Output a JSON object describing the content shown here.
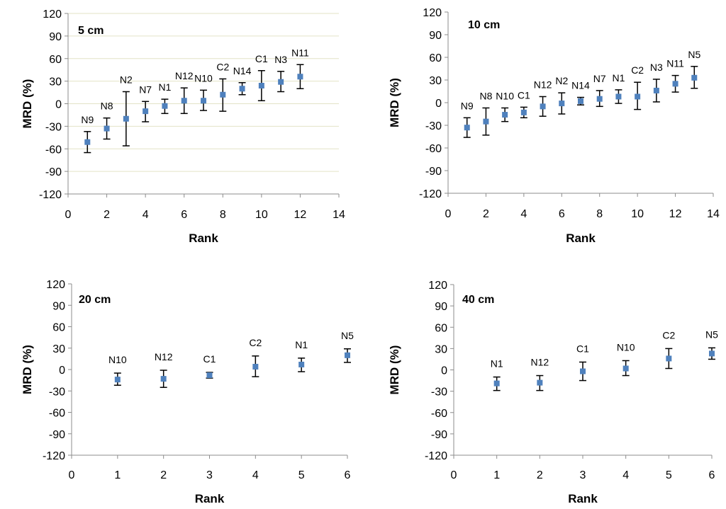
{
  "chart_data": [
    {
      "type": "scatter",
      "title": "5 cm",
      "xlabel": "Rank",
      "ylabel": "MRD (%)",
      "xlim": [
        0,
        14
      ],
      "ylim": [
        -120,
        120
      ],
      "xticks": [
        0,
        2,
        4,
        6,
        8,
        10,
        12,
        14
      ],
      "yticks": [
        -120,
        -90,
        -60,
        -30,
        0,
        30,
        60,
        90,
        120
      ],
      "grid": true,
      "marker_color": "#4F81BD",
      "points": [
        {
          "label": "N9",
          "x": 1,
          "y": -51,
          "err_low": -65,
          "err_high": -37
        },
        {
          "label": "N8",
          "x": 2,
          "y": -33,
          "err_low": -47,
          "err_high": -19
        },
        {
          "label": "N2",
          "x": 3,
          "y": -20,
          "err_low": -56,
          "err_high": 16
        },
        {
          "label": "N7",
          "x": 4,
          "y": -10,
          "err_low": -24,
          "err_high": 3
        },
        {
          "label": "N1",
          "x": 5,
          "y": -3,
          "err_low": -13,
          "err_high": 6
        },
        {
          "label": "N12",
          "x": 6,
          "y": 4,
          "err_low": -13,
          "err_high": 21
        },
        {
          "label": "N10",
          "x": 7,
          "y": 4,
          "err_low": -9,
          "err_high": 18
        },
        {
          "label": "C2",
          "x": 8,
          "y": 12,
          "err_low": -10,
          "err_high": 33
        },
        {
          "label": "N14",
          "x": 9,
          "y": 20,
          "err_low": 12,
          "err_high": 28
        },
        {
          "label": "C1",
          "x": 10,
          "y": 24,
          "err_low": 4,
          "err_high": 44
        },
        {
          "label": "N3",
          "x": 11,
          "y": 29,
          "err_low": 16,
          "err_high": 43
        },
        {
          "label": "N11",
          "x": 12,
          "y": 36,
          "err_low": 20,
          "err_high": 52
        }
      ]
    },
    {
      "type": "scatter",
      "title": "10 cm",
      "xlabel": "Rank",
      "ylabel": "MRD (%)",
      "xlim": [
        0,
        14
      ],
      "ylim": [
        -120,
        120
      ],
      "xticks": [
        0,
        2,
        4,
        6,
        8,
        10,
        12,
        14
      ],
      "yticks": [
        -120,
        -90,
        -60,
        -30,
        0,
        30,
        60,
        90,
        120
      ],
      "grid": false,
      "marker_color": "#4F81BD",
      "points": [
        {
          "label": "N9",
          "x": 1,
          "y": -33,
          "err_low": -46,
          "err_high": -20
        },
        {
          "label": "N8",
          "x": 2,
          "y": -25,
          "err_low": -43,
          "err_high": -7
        },
        {
          "label": "N10",
          "x": 3,
          "y": -16,
          "err_low": -25,
          "err_high": -7
        },
        {
          "label": "C1",
          "x": 4,
          "y": -13,
          "err_low": -20,
          "err_high": -6
        },
        {
          "label": "N12",
          "x": 5,
          "y": -5,
          "err_low": -18,
          "err_high": 8
        },
        {
          "label": "N2",
          "x": 6,
          "y": -1,
          "err_low": -15,
          "err_high": 13
        },
        {
          "label": "N14",
          "x": 7,
          "y": 2,
          "err_low": -3,
          "err_high": 7
        },
        {
          "label": "N7",
          "x": 8,
          "y": 5,
          "err_low": -5,
          "err_high": 16
        },
        {
          "label": "N1",
          "x": 9,
          "y": 8,
          "err_low": -1,
          "err_high": 17
        },
        {
          "label": "C2",
          "x": 10,
          "y": 8,
          "err_low": -9,
          "err_high": 27
        },
        {
          "label": "N3",
          "x": 11,
          "y": 16,
          "err_low": 1,
          "err_high": 31
        },
        {
          "label": "N11",
          "x": 12,
          "y": 25,
          "err_low": 14,
          "err_high": 36
        },
        {
          "label": "N5",
          "x": 13,
          "y": 33,
          "err_low": 19,
          "err_high": 48
        }
      ]
    },
    {
      "type": "scatter",
      "title": "20 cm",
      "xlabel": "Rank",
      "ylabel": "MRD (%)",
      "xlim": [
        0,
        6
      ],
      "ylim": [
        -120,
        120
      ],
      "xticks": [
        0,
        1,
        2,
        3,
        4,
        5,
        6
      ],
      "yticks": [
        -120,
        -90,
        -60,
        -30,
        0,
        30,
        60,
        90,
        120
      ],
      "grid": false,
      "marker_color": "#4F81BD",
      "points": [
        {
          "label": "N10",
          "x": 1,
          "y": -14,
          "err_low": -22,
          "err_high": -5
        },
        {
          "label": "N12",
          "x": 2,
          "y": -13,
          "err_low": -25,
          "err_high": -1
        },
        {
          "label": "C1",
          "x": 3,
          "y": -8,
          "err_low": -12,
          "err_high": -4
        },
        {
          "label": "C2",
          "x": 4,
          "y": 4,
          "err_low": -10,
          "err_high": 19
        },
        {
          "label": "N1",
          "x": 5,
          "y": 7,
          "err_low": -3,
          "err_high": 16
        },
        {
          "label": "N5",
          "x": 6,
          "y": 20,
          "err_low": 10,
          "err_high": 29
        }
      ]
    },
    {
      "type": "scatter",
      "title": "40 cm",
      "xlabel": "Rank",
      "ylabel": "MRD (%)",
      "xlim": [
        0,
        6
      ],
      "ylim": [
        -120,
        120
      ],
      "xticks": [
        0,
        1,
        2,
        3,
        4,
        5,
        6
      ],
      "yticks": [
        -120,
        -90,
        -60,
        -30,
        0,
        30,
        60,
        90,
        120
      ],
      "grid": false,
      "marker_color": "#4F81BD",
      "points": [
        {
          "label": "N1",
          "x": 1,
          "y": -19,
          "err_low": -29,
          "err_high": -10
        },
        {
          "label": "N12",
          "x": 2,
          "y": -18,
          "err_low": -29,
          "err_high": -8
        },
        {
          "label": "C1",
          "x": 3,
          "y": -2,
          "err_low": -15,
          "err_high": 11
        },
        {
          "label": "N10",
          "x": 4,
          "y": 2,
          "err_low": -8,
          "err_high": 13
        },
        {
          "label": "C2",
          "x": 5,
          "y": 16,
          "err_low": 2,
          "err_high": 30
        },
        {
          "label": "N5",
          "x": 6,
          "y": 23,
          "err_low": 15,
          "err_high": 31
        }
      ]
    }
  ]
}
